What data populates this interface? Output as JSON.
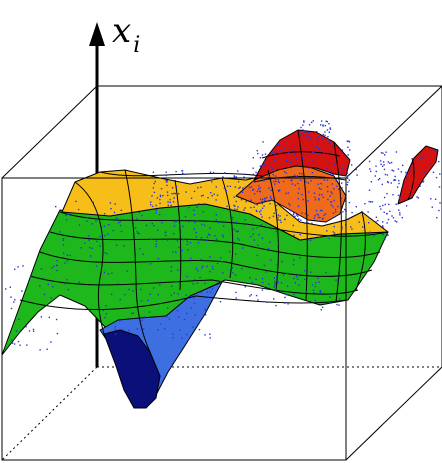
{
  "axis_label": {
    "symbol": "x",
    "subscript": "i"
  },
  "colors": {
    "level_navy": "#0a0f7a",
    "level_blue": "#3d6fe0",
    "level_green": "#1fb81c",
    "level_yellow": "#f7be1a",
    "level_orange": "#f06a1c",
    "level_red": "#d41212",
    "scatter_points": "#2a36d8",
    "frame": "#000000"
  }
}
